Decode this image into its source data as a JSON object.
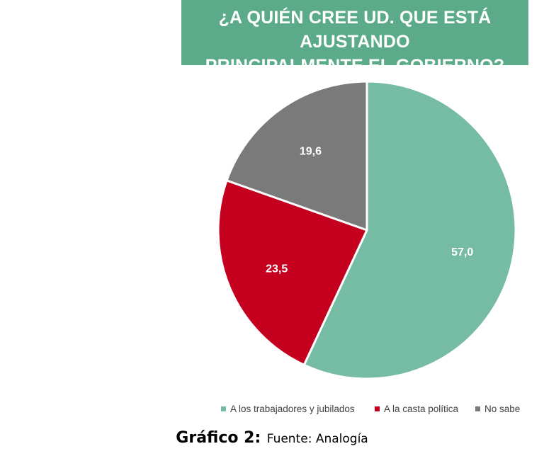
{
  "chart_data": {
    "type": "pie",
    "title_lines": [
      "¿A QUIÉN CREE UD. QUE ESTÁ AJUSTANDO",
      "PRINCIPALMENTE EL GOBIERNO?"
    ],
    "slices": [
      {
        "label": "A los trabajadores y jubilados",
        "value": 57.0,
        "display": "57,0",
        "color": "#76bba4"
      },
      {
        "label": "A la casta política",
        "value": 23.5,
        "display": "23,5",
        "color": "#c4001e"
      },
      {
        "label": "No sabe",
        "value": 19.6,
        "display": "19,6",
        "color": "#7a7a7a"
      }
    ],
    "legend_position": "bottom"
  },
  "caption": {
    "strong": "Gráfico 2:",
    "normal": "Fuente: Analogía"
  },
  "colors": {
    "banner": "#5bab8a",
    "label_text": "#ffffff",
    "slice_border": "#ffffff"
  }
}
